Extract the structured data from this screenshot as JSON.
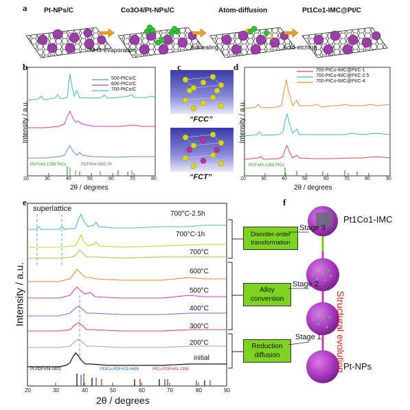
{
  "panel_a": {
    "letter": "a",
    "labels": [
      "Pt-NPs/C",
      "Co3O4/Pt-NPs/C",
      "Atom-diffusion",
      "Pt1Co1-IMC@Pt/C"
    ],
    "steps": [
      "NH3-evaporation",
      "Annealing",
      "Acid-etching"
    ]
  },
  "panel_b": {
    "letter": "b",
    "ylabel": "Intensity / a.u.",
    "xlabel": "2θ / degrees",
    "ref1": "PDF#43-1358 PtCo",
    "ref2": "PDF#04-0802 Pt",
    "legend": [
      "500-PtCo/C",
      "600-PtCo/C",
      "700-PtCo/C"
    ],
    "colors": [
      "#5b8fd6",
      "#e0399a",
      "#3cc0b0"
    ]
  },
  "panel_c": {
    "letter": "c",
    "fcc": "“FCC”",
    "fct": "“FCT”"
  },
  "panel_d": {
    "letter": "d",
    "ylabel": "Intensity / a.u.",
    "xlabel": "2θ / degrees",
    "ref1": "PDF#43-1358 PtCo",
    "legend": [
      "700-PtCo-IMC@Pt/C-1",
      "700-PtCo-IMC@Pt/C-2.5",
      "700-PtCo-IMC@Pt/C-4"
    ],
    "colors": [
      "#e8464a",
      "#3cb8c0",
      "#f28a30"
    ]
  },
  "panel_e": {
    "letter": "e",
    "ylabel": "Intensity / a.u.",
    "xlabel": "2θ / degrees",
    "superlattice": "superlattice",
    "temps": [
      "700°C-2.5h",
      "700°C-1h",
      "700°C",
      "600°C",
      "500°C",
      "400°C",
      "300°C",
      "200°C",
      "initial"
    ],
    "colors": [
      "#3cc0c8",
      "#c8d020",
      "#90d040",
      "#f28a20",
      "#c040c0",
      "#9860d8",
      "#e84040",
      "#9aa0e0",
      "#111111"
    ],
    "refs": [
      "Pt-PDF#04-0802",
      "Pt3Co-PDF#29-0499",
      "PtCo-PDF#43-1358"
    ],
    "boxes": [
      [
        "Disorder-order",
        "transformation"
      ],
      [
        "Alloy",
        "conversion"
      ],
      [
        "Reduction",
        "diffusion"
      ]
    ]
  },
  "panel_f": {
    "letter": "f",
    "top_label": "Pt1Co1-IMC",
    "bottom_label": "Pt-NPs",
    "stages": [
      "Stage 3",
      "Stage 2",
      "Stage 1"
    ],
    "evolution": "Structural evolution"
  },
  "axis_ticks": {
    "b": [
      "20",
      "30",
      "40",
      "50",
      "60",
      "70",
      "80"
    ],
    "d": [
      "20",
      "30",
      "40",
      "50",
      "60",
      "70",
      "80",
      "90"
    ],
    "e": [
      "20",
      "30",
      "40",
      "50",
      "60",
      "70",
      "80",
      "90"
    ]
  }
}
